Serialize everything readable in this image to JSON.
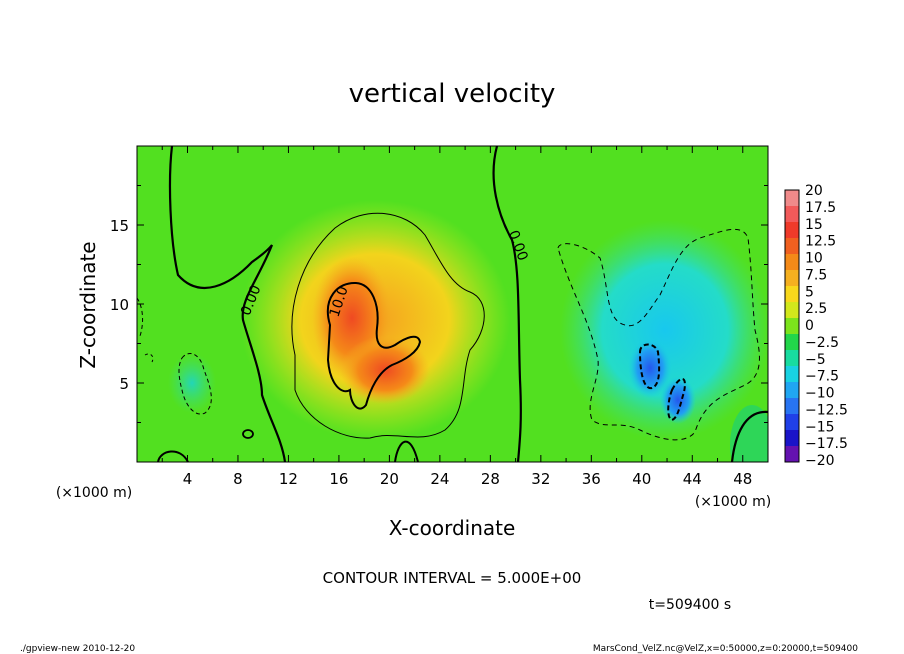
{
  "chart_data": {
    "type": "heatmap",
    "title": "vertical velocity",
    "xlabel": "X-coordinate",
    "ylabel": "Z-coordinate",
    "x_unit": "(×1000 m)",
    "y_unit": "(×1000 m)",
    "xlim": [
      0,
      50
    ],
    "ylim": [
      0,
      20
    ],
    "x_ticks": [
      4,
      8,
      12,
      16,
      20,
      24,
      28,
      32,
      36,
      40,
      44,
      48
    ],
    "y_ticks": [
      5,
      10,
      15
    ],
    "colorbar": {
      "labels": [
        "20",
        "17.5",
        "15",
        "12.5",
        "10",
        "7.5",
        "5",
        "2.5",
        "0",
        "−2.5",
        "−5",
        "−7.5",
        "−10",
        "−12.5",
        "−15",
        "−17.5",
        "−20"
      ],
      "colors": [
        "#f08a8a",
        "#f25a5a",
        "#ef3a2a",
        "#f06020",
        "#f48a18",
        "#f5b020",
        "#f8d81c",
        "#d2e81c",
        "#7ce41c",
        "#22d64a",
        "#18dca0",
        "#18d2e2",
        "#20a6f2",
        "#2874f2",
        "#2040e8",
        "#1a14c8",
        "#6412b0"
      ]
    },
    "features": [
      {
        "name": "updraft-core",
        "x": 17.5,
        "z": 8.5,
        "value": 14
      },
      {
        "name": "updraft-secondary",
        "x": 19,
        "z": 5.5,
        "value": 12
      },
      {
        "name": "downdraft-core",
        "x": 40.5,
        "z": 6,
        "value": -10
      },
      {
        "name": "downdraft-secondary",
        "x": 42.5,
        "z": 3.5,
        "value": -11
      }
    ],
    "contour_labels": [
      "0.00",
      "10.0",
      "0.00"
    ],
    "contour_interval_text": "CONTOUR INTERVAL = 5.000E+00",
    "time_text": "t=509400 s"
  },
  "footer": {
    "left": "./gpview-new  2010-12-20",
    "right": "MarsCond_VelZ.nc@VelZ,x=0:50000,z=0:20000,t=509400"
  }
}
